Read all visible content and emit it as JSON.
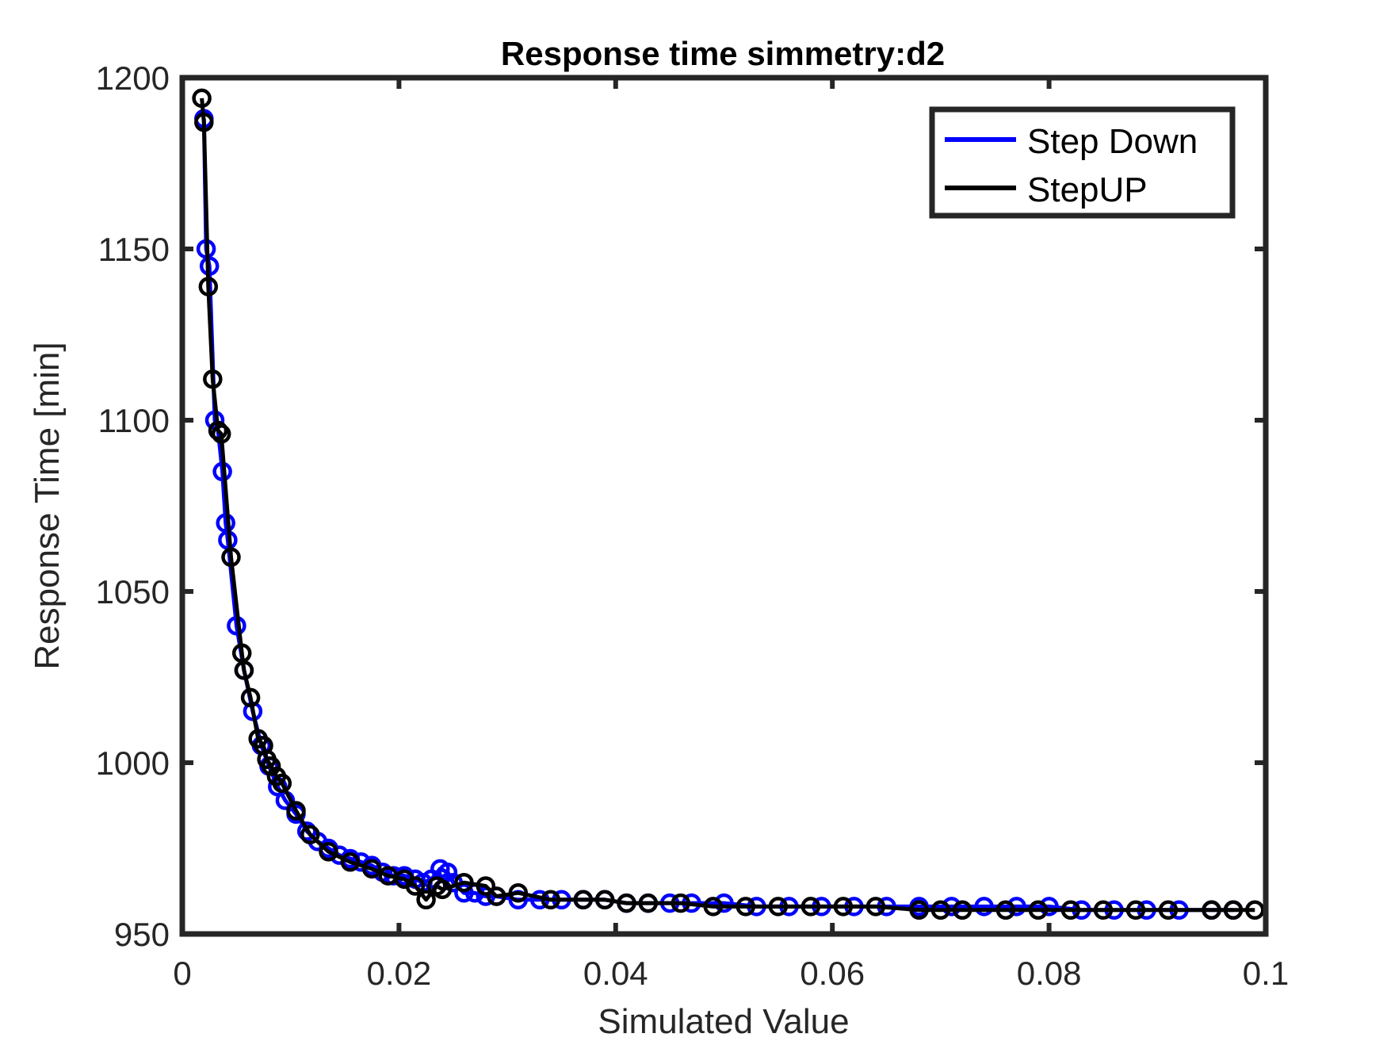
{
  "chart_data": {
    "type": "line",
    "title": "Response time simmetry:d2",
    "xlabel": "Simulated Value",
    "ylabel": "Response Time [min]",
    "xlim": [
      0,
      0.1
    ],
    "ylim": [
      950,
      1200
    ],
    "xticks": [
      0,
      0.02,
      0.04,
      0.06,
      0.08,
      0.1
    ],
    "xtick_labels": [
      "0",
      "0.02",
      "0.04",
      "0.06",
      "0.08",
      "0.1"
    ],
    "yticks": [
      950,
      1000,
      1050,
      1100,
      1150,
      1200
    ],
    "ytick_labels": [
      "950",
      "1000",
      "1050",
      "1100",
      "1150",
      "1200"
    ],
    "grid": false,
    "legend_position": "top-right",
    "markers": "open circles",
    "series": [
      {
        "name": "Step Down",
        "color": "#0000ff",
        "points": [
          [
            0.002,
            1188
          ],
          [
            0.0022,
            1150
          ],
          [
            0.0025,
            1145
          ],
          [
            0.003,
            1100
          ],
          [
            0.0033,
            1097
          ],
          [
            0.0037,
            1085
          ],
          [
            0.004,
            1070
          ],
          [
            0.0042,
            1065
          ],
          [
            0.005,
            1040
          ],
          [
            0.0057,
            1027
          ],
          [
            0.0065,
            1015
          ],
          [
            0.0073,
            1005
          ],
          [
            0.008,
            999
          ],
          [
            0.0088,
            993
          ],
          [
            0.0095,
            989
          ],
          [
            0.0105,
            985
          ],
          [
            0.0115,
            980
          ],
          [
            0.0125,
            977
          ],
          [
            0.0135,
            975
          ],
          [
            0.0145,
            973
          ],
          [
            0.0155,
            972
          ],
          [
            0.0165,
            971
          ],
          [
            0.0175,
            970
          ],
          [
            0.0185,
            968
          ],
          [
            0.0195,
            967
          ],
          [
            0.0205,
            967
          ],
          [
            0.0215,
            966
          ],
          [
            0.0222,
            965
          ],
          [
            0.023,
            966
          ],
          [
            0.0238,
            969
          ],
          [
            0.0245,
            968
          ],
          [
            0.025,
            965
          ],
          [
            0.026,
            962
          ],
          [
            0.027,
            962
          ],
          [
            0.028,
            961
          ],
          [
            0.029,
            961
          ],
          [
            0.031,
            960
          ],
          [
            0.033,
            960
          ],
          [
            0.035,
            960
          ],
          [
            0.037,
            960
          ],
          [
            0.039,
            960
          ],
          [
            0.041,
            959
          ],
          [
            0.043,
            959
          ],
          [
            0.045,
            959
          ],
          [
            0.047,
            959
          ],
          [
            0.05,
            959
          ],
          [
            0.053,
            958
          ],
          [
            0.056,
            958
          ],
          [
            0.059,
            958
          ],
          [
            0.062,
            958
          ],
          [
            0.065,
            958
          ],
          [
            0.068,
            958
          ],
          [
            0.071,
            958
          ],
          [
            0.074,
            958
          ],
          [
            0.077,
            958
          ],
          [
            0.08,
            958
          ],
          [
            0.083,
            957
          ],
          [
            0.086,
            957
          ],
          [
            0.089,
            957
          ],
          [
            0.092,
            957
          ],
          [
            0.095,
            957
          ],
          [
            0.097,
            957
          ]
        ]
      },
      {
        "name": "StepUP",
        "color": "#000000",
        "points": [
          [
            0.0018,
            1194
          ],
          [
            0.002,
            1187
          ],
          [
            0.0024,
            1139
          ],
          [
            0.0028,
            1112
          ],
          [
            0.0033,
            1097
          ],
          [
            0.0036,
            1096
          ],
          [
            0.0045,
            1060
          ],
          [
            0.0055,
            1032
          ],
          [
            0.0057,
            1027
          ],
          [
            0.0063,
            1019
          ],
          [
            0.007,
            1007
          ],
          [
            0.0075,
            1005
          ],
          [
            0.0078,
            1001
          ],
          [
            0.0082,
            999
          ],
          [
            0.0087,
            996
          ],
          [
            0.0092,
            994
          ],
          [
            0.0105,
            986
          ],
          [
            0.0118,
            979
          ],
          [
            0.0135,
            974
          ],
          [
            0.0155,
            971
          ],
          [
            0.0175,
            969
          ],
          [
            0.019,
            967
          ],
          [
            0.0205,
            966
          ],
          [
            0.0215,
            964
          ],
          [
            0.0225,
            960
          ],
          [
            0.0235,
            964
          ],
          [
            0.024,
            963
          ],
          [
            0.026,
            965
          ],
          [
            0.028,
            964
          ],
          [
            0.029,
            961
          ],
          [
            0.031,
            962
          ],
          [
            0.034,
            960
          ],
          [
            0.037,
            960
          ],
          [
            0.039,
            960
          ],
          [
            0.041,
            959
          ],
          [
            0.043,
            959
          ],
          [
            0.046,
            959
          ],
          [
            0.049,
            958
          ],
          [
            0.052,
            958
          ],
          [
            0.055,
            958
          ],
          [
            0.058,
            958
          ],
          [
            0.061,
            958
          ],
          [
            0.064,
            958
          ],
          [
            0.068,
            957
          ],
          [
            0.07,
            957
          ],
          [
            0.072,
            957
          ],
          [
            0.076,
            957
          ],
          [
            0.079,
            957
          ],
          [
            0.082,
            957
          ],
          [
            0.085,
            957
          ],
          [
            0.088,
            957
          ],
          [
            0.091,
            957
          ],
          [
            0.095,
            957
          ],
          [
            0.097,
            957
          ],
          [
            0.099,
            957
          ]
        ]
      }
    ]
  }
}
